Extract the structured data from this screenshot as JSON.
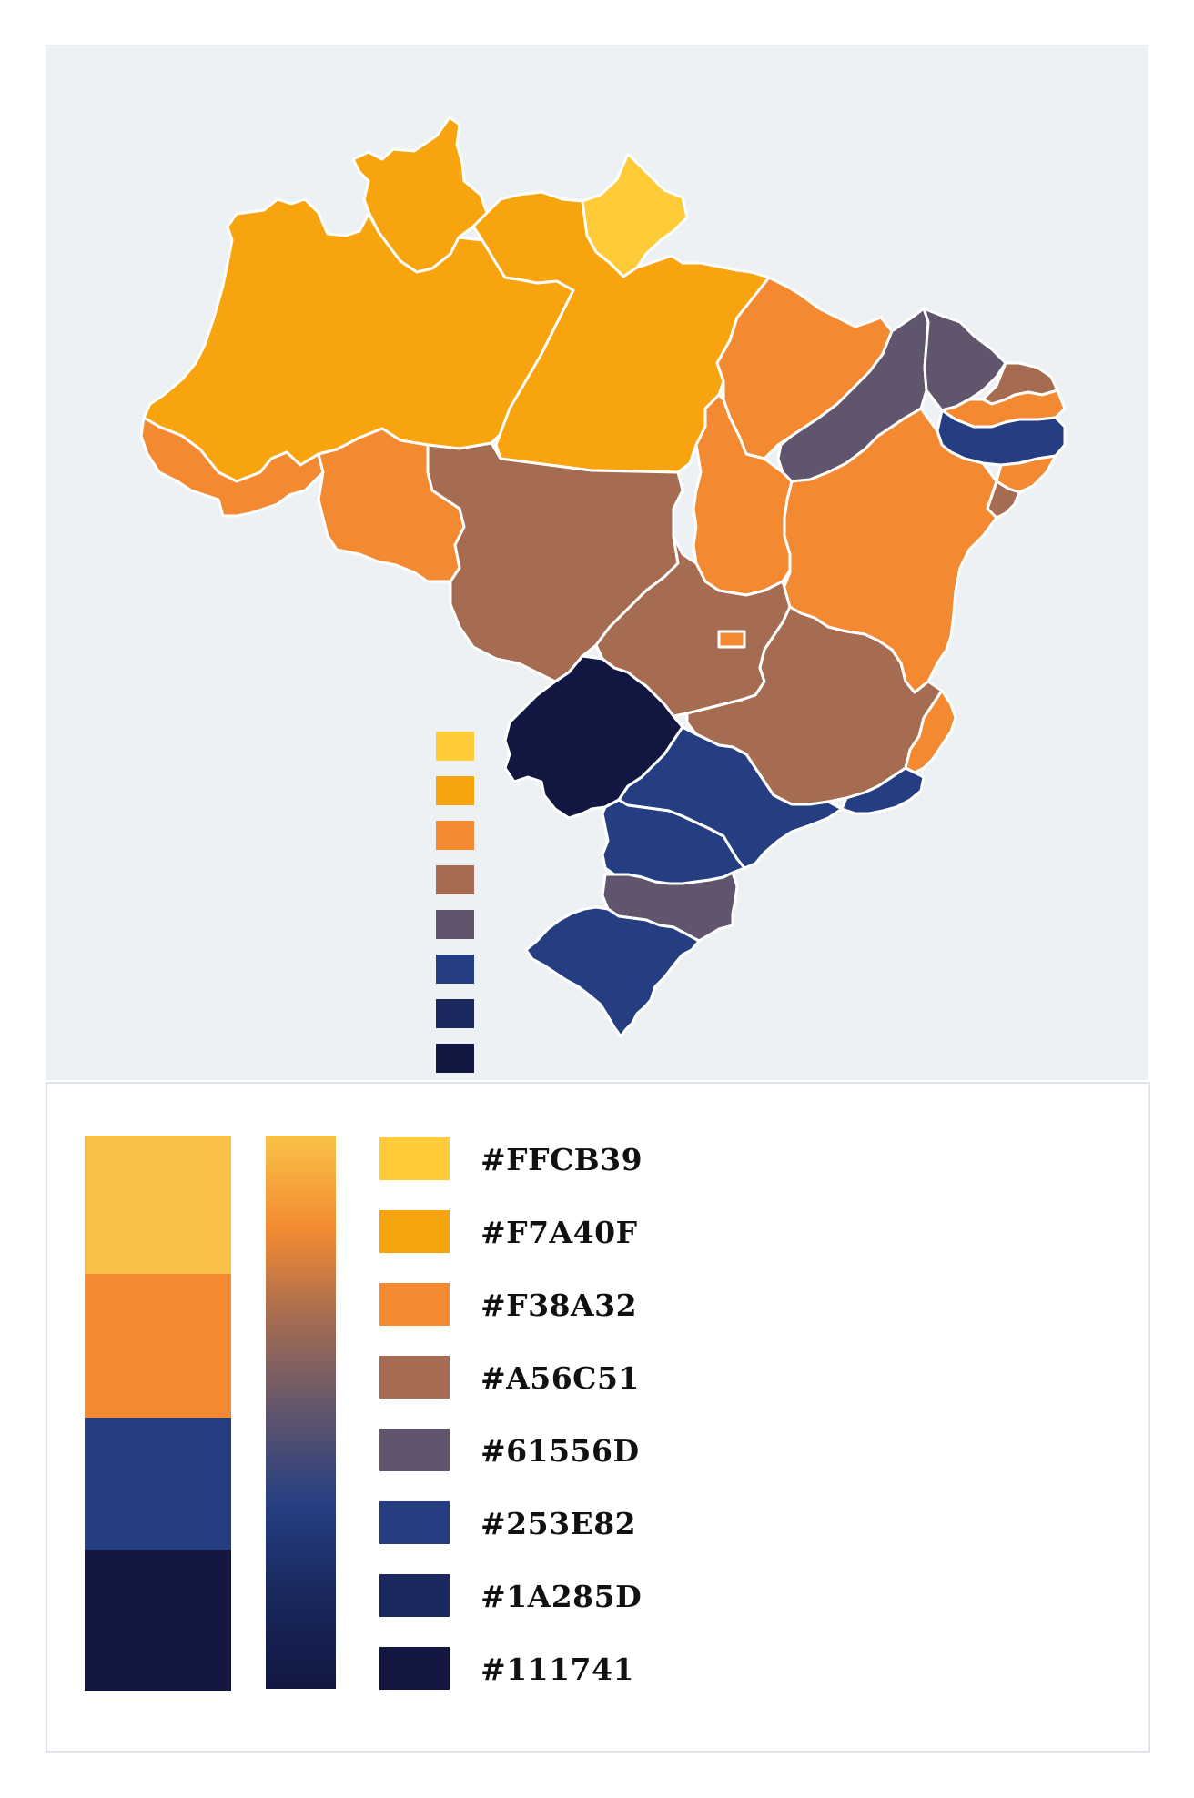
{
  "palette": [
    {
      "hex": "#FFCB39",
      "label": "#FFCB39"
    },
    {
      "hex": "#F7A40F",
      "label": "#F7A40F"
    },
    {
      "hex": "#F38A32",
      "label": "#F38A32"
    },
    {
      "hex": "#A56C51",
      "label": "#A56C51"
    },
    {
      "hex": "#61556D",
      "label": "#61556D"
    },
    {
      "hex": "#253E82",
      "label": "#253E82"
    },
    {
      "hex": "#1A285D",
      "label": "#1A285D"
    },
    {
      "hex": "#111741",
      "label": "#111741"
    }
  ],
  "block_colors": [
    "#F9C247",
    "#F38A32",
    "#253E82",
    "#111741"
  ],
  "gradient_colors": [
    "#F9C247",
    "#F38A32",
    "#A56C51",
    "#61556D",
    "#253E82",
    "#1A285D",
    "#111741"
  ],
  "map": {
    "regions": [
      {
        "name": "roraima",
        "color": "#F7A40F"
      },
      {
        "name": "amapa",
        "color": "#FFCB39"
      },
      {
        "name": "amazonas",
        "color": "#F7A40F"
      },
      {
        "name": "para",
        "color": "#F7A40F"
      },
      {
        "name": "acre",
        "color": "#F38A32"
      },
      {
        "name": "rondonia",
        "color": "#F38A32"
      },
      {
        "name": "mato-grosso",
        "color": "#A56C51"
      },
      {
        "name": "maranhao",
        "color": "#F38A32"
      },
      {
        "name": "tocantins",
        "color": "#F38A32"
      },
      {
        "name": "piaui",
        "color": "#61556D"
      },
      {
        "name": "ceara",
        "color": "#61556D"
      },
      {
        "name": "rio-grande-do-norte",
        "color": "#A56C51"
      },
      {
        "name": "paraiba",
        "color": "#F38A32"
      },
      {
        "name": "pernambuco",
        "color": "#253E82"
      },
      {
        "name": "alagoas",
        "color": "#F38A32"
      },
      {
        "name": "sergipe",
        "color": "#A56C51"
      },
      {
        "name": "bahia",
        "color": "#F38A32"
      },
      {
        "name": "goias",
        "color": "#A56C51"
      },
      {
        "name": "distrito-federal",
        "color": "#F38A32"
      },
      {
        "name": "minas-gerais",
        "color": "#A56C51"
      },
      {
        "name": "espirito-santo",
        "color": "#F38A32"
      },
      {
        "name": "rio-de-janeiro",
        "color": "#253E82"
      },
      {
        "name": "mato-grosso-do-sul",
        "color": "#111741"
      },
      {
        "name": "sao-paulo",
        "color": "#253E82"
      },
      {
        "name": "parana",
        "color": "#253E82"
      },
      {
        "name": "santa-catarina",
        "color": "#61556D"
      },
      {
        "name": "rio-grande-do-sul",
        "color": "#253E82"
      }
    ],
    "legend_colors": [
      "#FFCB39",
      "#F7A40F",
      "#F38A32",
      "#A56C51",
      "#61556D",
      "#253E82",
      "#1A285D",
      "#111741"
    ]
  }
}
